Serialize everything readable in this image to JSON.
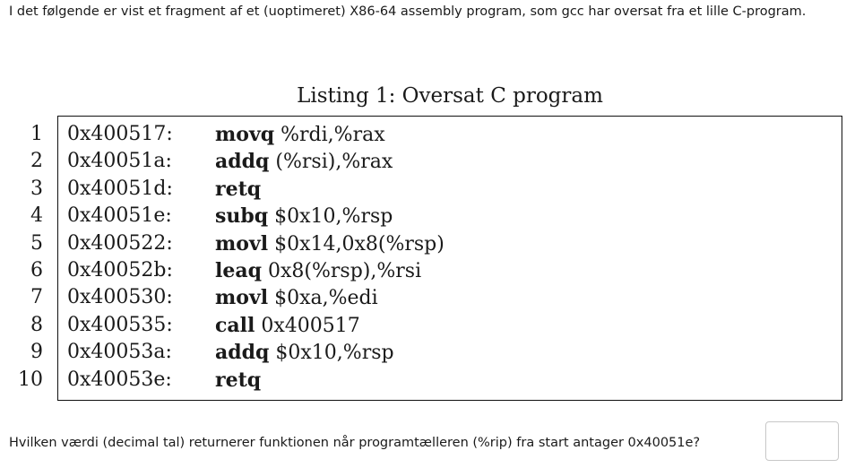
{
  "intro_text": "I det følgende er vist et fragment af et (uoptimeret) X86-64 assembly program, som gcc har oversat fra et lille C-program.",
  "listing": {
    "caption": "Listing 1: Oversat C program",
    "lines": [
      {
        "num": "1",
        "addr": "0x400517:",
        "mnemonic": "movq",
        "operands": "%rdi,%rax"
      },
      {
        "num": "2",
        "addr": "0x40051a:",
        "mnemonic": "addq",
        "operands": "(%rsi),%rax"
      },
      {
        "num": "3",
        "addr": "0x40051d:",
        "mnemonic": "retq",
        "operands": ""
      },
      {
        "num": "4",
        "addr": "0x40051e:",
        "mnemonic": "subq",
        "operands": "$0x10,%rsp"
      },
      {
        "num": "5",
        "addr": "0x400522:",
        "mnemonic": "movl",
        "operands": "$0x14,0x8(%rsp)"
      },
      {
        "num": "6",
        "addr": "0x40052b:",
        "mnemonic": "leaq",
        "operands": "0x8(%rsp),%rsi"
      },
      {
        "num": "7",
        "addr": "0x400530:",
        "mnemonic": "movl",
        "operands": "$0xa,%edi"
      },
      {
        "num": "8",
        "addr": "0x400535:",
        "mnemonic": "call",
        "operands": "0x400517"
      },
      {
        "num": "9",
        "addr": "0x40053a:",
        "mnemonic": "addq",
        "operands": "$0x10,%rsp"
      },
      {
        "num": "10",
        "addr": "0x40053e:",
        "mnemonic": "retq",
        "operands": ""
      }
    ]
  },
  "question": {
    "text": "Hvilken værdi (decimal tal) returnerer funktionen når programtælleren (%rip) fra start antager 0x40051e?",
    "answer_value": ""
  }
}
